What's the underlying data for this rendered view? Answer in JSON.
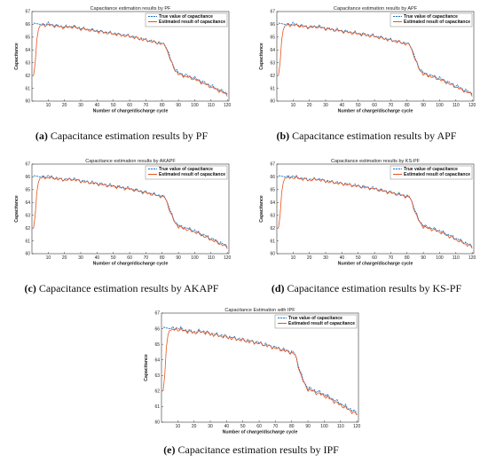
{
  "colors": {
    "true_series": "#1f78c8",
    "estimated_series": "#e8531c",
    "axis": "#333333"
  },
  "panels": [
    {
      "id": "a",
      "caption": {
        "letter": "(a)",
        "text": " Capacitance estimation results by PF"
      },
      "chart": {
        "title": "Capacitance estimation results by PF"
      }
    },
    {
      "id": "b",
      "caption": {
        "letter": "(b)",
        "text": " Capacitance estimation results by APF"
      },
      "chart": {
        "title": "Capacitance estimation results by APF"
      }
    },
    {
      "id": "c",
      "caption": {
        "letter": "(c)",
        "text": " Capacitance estimation results by AKAPF"
      },
      "chart": {
        "title": "Capacitance estimation results by AKAPF"
      }
    },
    {
      "id": "d",
      "caption": {
        "letter": "(d)",
        "text": " Capacitance estimation results by KS-PF"
      },
      "chart": {
        "title": "Capacitance estimation results by KS-PF"
      }
    },
    {
      "id": "e",
      "caption": {
        "letter": "(e)",
        "text": " Capacitance estimation results by IPF"
      },
      "chart": {
        "title": "Capacitance Estimation with IPF"
      }
    }
  ],
  "chart_data": {
    "type": "line",
    "xlabel": "Number of charge/discharge cycle",
    "ylabel": "Capacitance",
    "xlim": [
      0,
      121
    ],
    "ylim": [
      60,
      67
    ],
    "xticks": [
      10,
      20,
      30,
      40,
      50,
      60,
      70,
      80,
      90,
      100,
      110,
      120
    ],
    "yticks": [
      60,
      61,
      62,
      63,
      64,
      65,
      66,
      67
    ],
    "legend": {
      "position": "top-right",
      "entries": [
        "True value of capacitance",
        "Estimated result of capacitance"
      ]
    },
    "series": [
      {
        "name": "True value of capacitance",
        "x": [
          1,
          5,
          10,
          15,
          20,
          25,
          30,
          35,
          40,
          45,
          50,
          55,
          60,
          65,
          70,
          75,
          80,
          82,
          84,
          86,
          88,
          90,
          95,
          100,
          105,
          110,
          115,
          120
        ],
        "y": [
          66.1,
          66.0,
          66.05,
          65.9,
          65.8,
          65.85,
          65.7,
          65.6,
          65.5,
          65.4,
          65.3,
          65.2,
          65.1,
          64.95,
          64.8,
          64.65,
          64.5,
          64.4,
          63.7,
          63.0,
          62.5,
          62.2,
          62.0,
          61.8,
          61.5,
          61.2,
          60.9,
          60.6
        ]
      },
      {
        "name": "Estimated result of capacitance",
        "x": [
          1,
          2,
          3,
          4,
          5,
          10,
          15,
          20,
          25,
          30,
          35,
          40,
          45,
          50,
          55,
          60,
          65,
          70,
          75,
          80,
          82,
          84,
          86,
          88,
          90,
          95,
          100,
          105,
          110,
          115,
          120
        ],
        "y": [
          62.0,
          63.0,
          64.8,
          65.6,
          65.9,
          65.95,
          65.85,
          65.75,
          65.8,
          65.65,
          65.55,
          65.45,
          65.35,
          65.25,
          65.15,
          65.05,
          64.9,
          64.75,
          64.6,
          64.45,
          64.35,
          63.6,
          62.9,
          62.4,
          62.1,
          61.9,
          61.7,
          61.4,
          61.1,
          60.8,
          60.5
        ]
      }
    ]
  }
}
